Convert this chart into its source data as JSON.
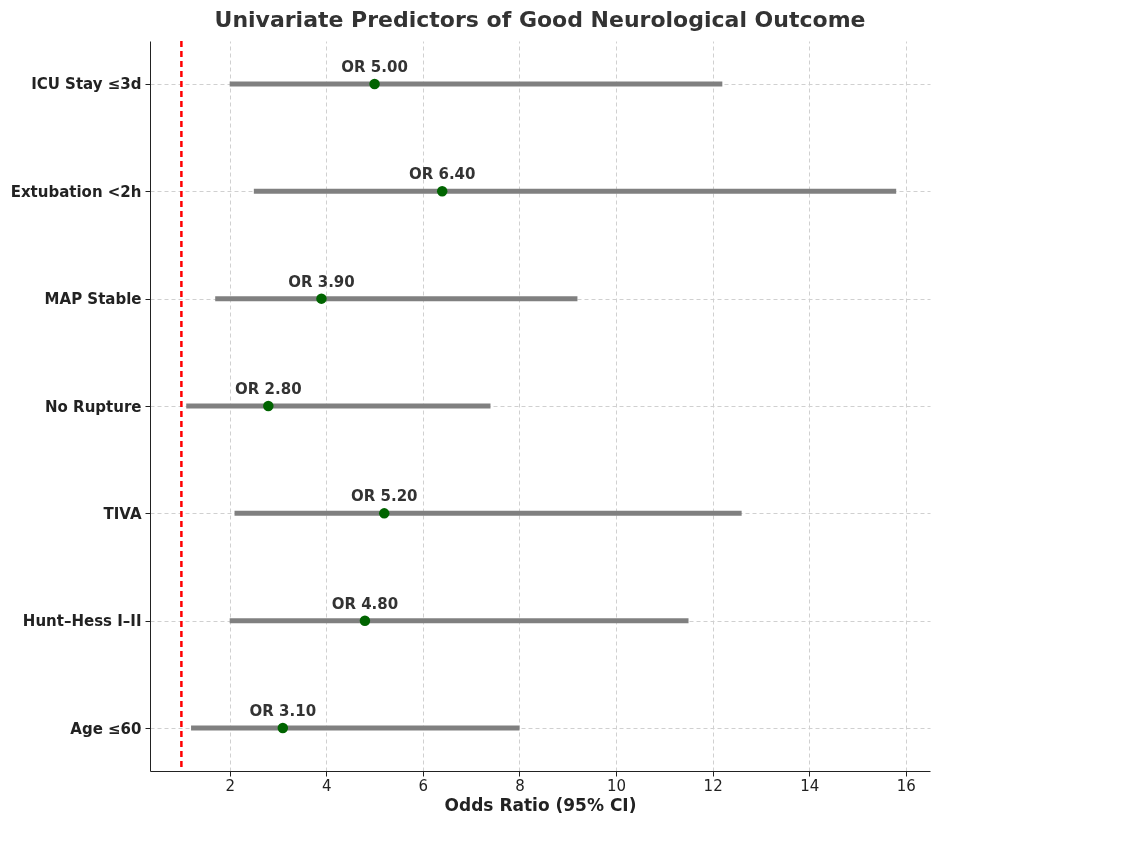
{
  "chart_data": {
    "type": "scatter",
    "orientation": "horizontal",
    "title": "Univariate Predictors of Good Neurological Outcome",
    "xlabel": "Odds Ratio (95% CI)",
    "categories": [
      "ICU Stay ≤3d",
      "Extubation <2h",
      "MAP Stable",
      "No Rupture",
      "TIVA",
      "Hunt–Hess I–II",
      "Age ≤60"
    ],
    "series": [
      {
        "color": "#006400",
        "values": [
          5.0,
          6.4,
          3.9,
          2.8,
          5.2,
          4.8,
          3.1
        ],
        "errors": [
          [
            2.0,
            12.2
          ],
          [
            2.5,
            15.8
          ],
          [
            1.7,
            9.2
          ],
          [
            1.1,
            7.4
          ],
          [
            2.1,
            12.6
          ],
          [
            2.0,
            11.5
          ],
          [
            1.2,
            8.0
          ]
        ],
        "value_labels": [
          "OR 5.00",
          "OR 6.40",
          "OR 3.90",
          "OR 2.80",
          "OR 5.20",
          "OR 4.80",
          "OR 3.10"
        ]
      }
    ],
    "xlim": [
      0.35,
      16.5
    ],
    "xticks": [
      2,
      4,
      6,
      8,
      10,
      12,
      14,
      16
    ],
    "ref_lines": [
      {
        "axis": "x",
        "value": 1,
        "color": "#ff0000",
        "line_style": "dashed"
      }
    ],
    "grid": true,
    "marker": "circle"
  }
}
